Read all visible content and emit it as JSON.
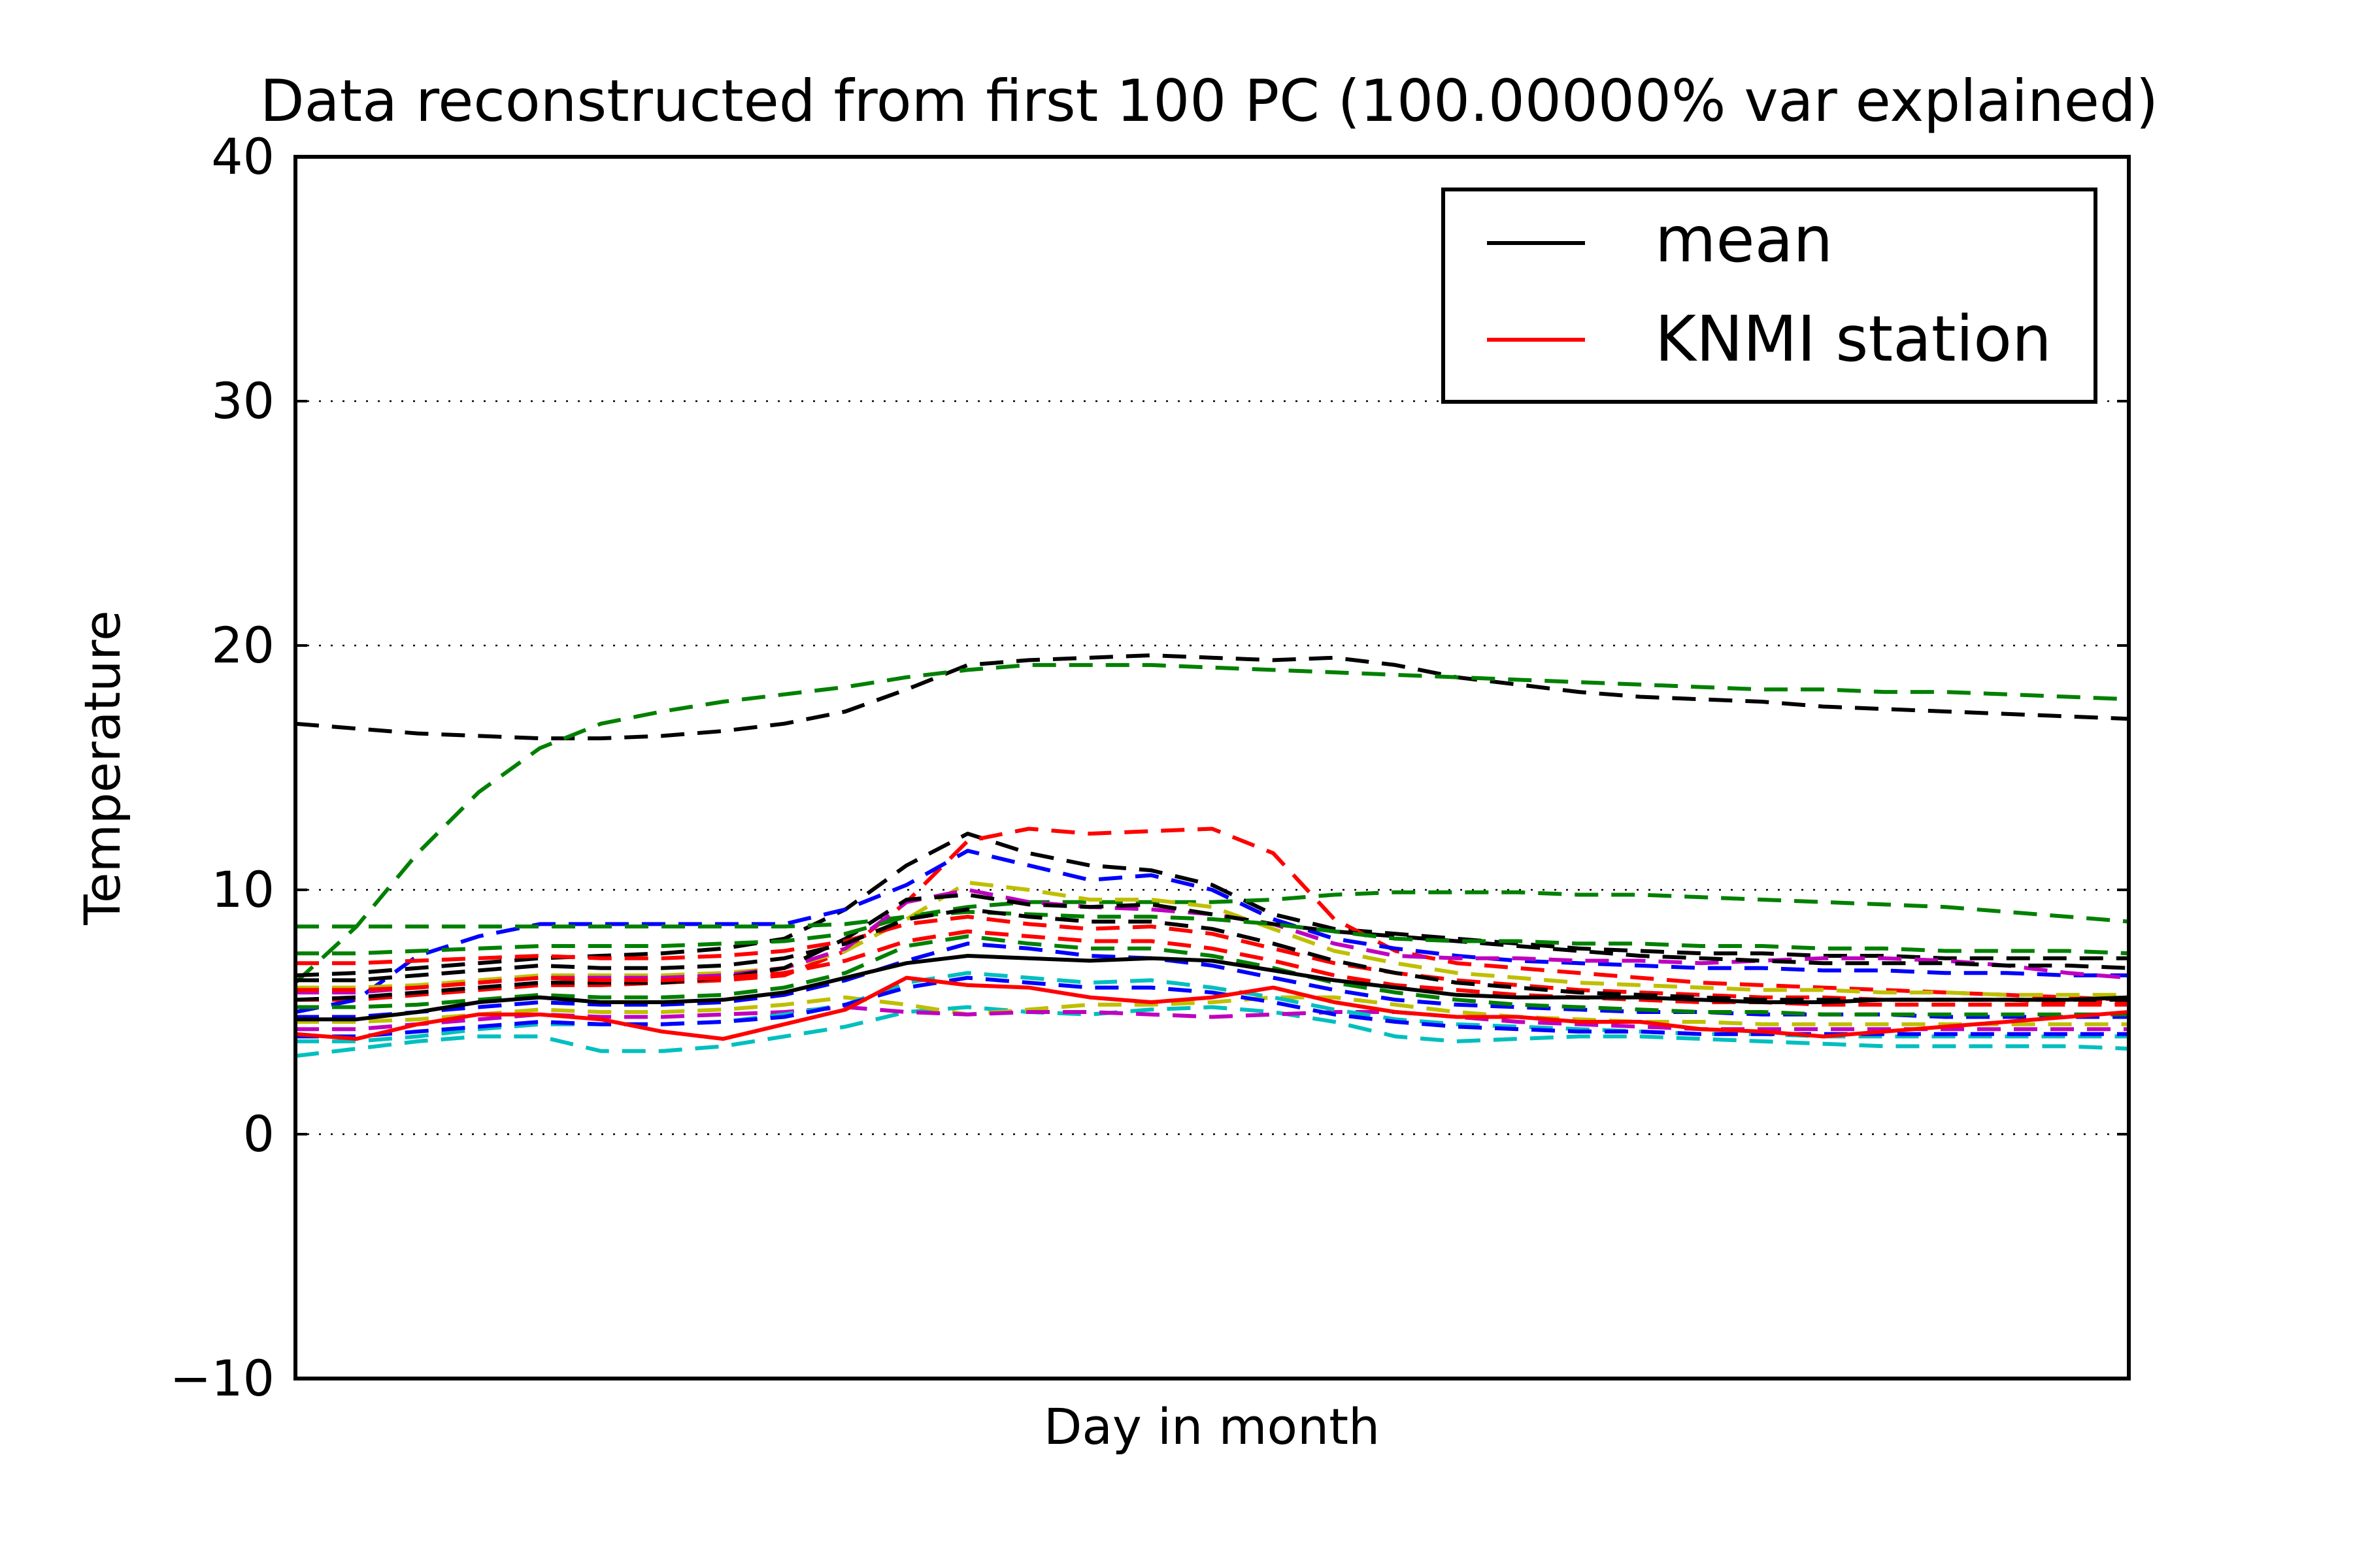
{
  "chart_data": {
    "type": "line",
    "title": "Data reconstructed from first 100 PC (100.00000% var explained)",
    "xlabel": "Day in month",
    "ylabel": "Temperature",
    "ylim": [
      -10,
      40
    ],
    "xlim": [
      1,
      31
    ],
    "yticks": [
      -10,
      0,
      10,
      20,
      30,
      40
    ],
    "ytick_labels": [
      "−10",
      "0",
      "10",
      "20",
      "30",
      "40"
    ],
    "grid": "horizontal dotted",
    "legend_position": "top-right",
    "legend": [
      {
        "label": "mean",
        "color": "#000000",
        "style": "solid"
      },
      {
        "label": "KNMI station",
        "color": "#ff0000",
        "style": "solid"
      }
    ],
    "highlighted_series": [
      {
        "name": "mean",
        "color": "#000000",
        "style": "solid",
        "values": [
          4.7,
          4.7,
          5.0,
          5.4,
          5.6,
          5.4,
          5.4,
          5.5,
          5.8,
          6.4,
          7.0,
          7.3,
          7.2,
          7.1,
          7.2,
          7.1,
          6.7,
          6.3,
          6.0,
          5.7,
          5.6,
          5.6,
          5.6,
          5.5,
          5.4,
          5.4,
          5.5,
          5.5,
          5.5,
          5.5,
          5.6
        ]
      },
      {
        "name": "KNMI station",
        "color": "#ff0000",
        "style": "solid",
        "values": [
          4.1,
          3.9,
          4.5,
          4.9,
          4.9,
          4.7,
          4.2,
          3.9,
          4.5,
          5.1,
          6.4,
          6.1,
          6.0,
          5.6,
          5.4,
          5.6,
          6.0,
          5.4,
          5.0,
          4.8,
          4.8,
          4.6,
          4.6,
          4.3,
          4.2,
          4.0,
          4.2,
          4.4,
          4.6,
          4.8,
          5.0
        ]
      }
    ],
    "member_series": [
      {
        "color": "#000000",
        "style": "dashed",
        "values": [
          16.8,
          16.6,
          16.4,
          16.3,
          16.2,
          16.2,
          16.3,
          16.5,
          16.8,
          17.3,
          18.2,
          19.2,
          19.4,
          19.5,
          19.6,
          19.5,
          19.4,
          19.5,
          19.2,
          18.7,
          18.4,
          18.1,
          17.9,
          17.8,
          17.7,
          17.5,
          17.4,
          17.3,
          17.2,
          17.1,
          17.0
        ]
      },
      {
        "color": "#008000",
        "style": "dashed",
        "values": [
          6.2,
          8.5,
          11.5,
          14.0,
          15.8,
          16.8,
          17.3,
          17.7,
          18.0,
          18.3,
          18.7,
          19.0,
          19.2,
          19.2,
          19.2,
          19.1,
          19.0,
          18.9,
          18.8,
          18.7,
          18.6,
          18.5,
          18.4,
          18.3,
          18.2,
          18.2,
          18.1,
          18.1,
          18.0,
          17.9,
          17.8
        ]
      },
      {
        "color": "#000000",
        "style": "dashed",
        "values": [
          6.5,
          6.6,
          6.8,
          7.0,
          7.2,
          7.3,
          7.4,
          7.6,
          8.0,
          9.2,
          11.0,
          12.3,
          11.5,
          11.0,
          10.8,
          10.2,
          9.0,
          8.4,
          8.2,
          8.0,
          7.8,
          7.6,
          7.5,
          7.4,
          7.4,
          7.3,
          7.3,
          7.2,
          7.2,
          7.2,
          7.2
        ]
      },
      {
        "color": "#ff0000",
        "style": "dashed",
        "values": [
          5.5,
          5.5,
          5.7,
          5.9,
          6.1,
          6.1,
          6.2,
          6.3,
          6.5,
          7.5,
          9.5,
          12.0,
          12.5,
          12.3,
          12.4,
          12.5,
          11.5,
          8.8,
          7.5,
          7.0,
          6.8,
          6.6,
          6.4,
          6.2,
          6.1,
          6.0,
          5.9,
          5.8,
          5.7,
          5.6,
          5.5
        ]
      },
      {
        "color": "#0000ff",
        "style": "dashed",
        "values": [
          5.0,
          5.5,
          7.3,
          8.1,
          8.6,
          8.6,
          8.6,
          8.6,
          8.6,
          9.2,
          10.2,
          11.6,
          11.0,
          10.4,
          10.6,
          10.0,
          8.8,
          8.0,
          7.6,
          7.3,
          7.1,
          7.0,
          6.9,
          6.8,
          6.8,
          6.7,
          6.7,
          6.6,
          6.6,
          6.5,
          6.5
        ]
      },
      {
        "color": "#008000",
        "style": "dashed",
        "values": [
          8.5,
          8.5,
          8.5,
          8.5,
          8.5,
          8.5,
          8.5,
          8.5,
          8.5,
          8.6,
          8.9,
          9.3,
          9.5,
          9.5,
          9.5,
          9.5,
          9.6,
          9.8,
          9.9,
          9.9,
          9.9,
          9.8,
          9.8,
          9.7,
          9.6,
          9.5,
          9.4,
          9.3,
          9.1,
          8.9,
          8.7
        ]
      },
      {
        "color": "#bfbf00",
        "style": "dashed",
        "values": [
          6.0,
          6.0,
          6.1,
          6.3,
          6.5,
          6.5,
          6.5,
          6.6,
          6.8,
          7.5,
          8.8,
          10.3,
          10.0,
          9.6,
          9.6,
          9.3,
          8.4,
          7.5,
          7.0,
          6.6,
          6.4,
          6.2,
          6.1,
          6.0,
          5.9,
          5.9,
          5.8,
          5.8,
          5.7,
          5.7,
          5.7
        ]
      },
      {
        "color": "#bf00bf",
        "style": "dashed",
        "values": [
          5.8,
          5.8,
          6.0,
          6.2,
          6.4,
          6.4,
          6.4,
          6.5,
          6.8,
          7.6,
          9.5,
          10.0,
          9.5,
          9.3,
          9.2,
          9.0,
          8.6,
          7.8,
          7.3,
          7.2,
          7.2,
          7.1,
          7.1,
          7.0,
          7.1,
          7.2,
          7.2,
          7.1,
          6.9,
          6.6,
          6.4
        ]
      },
      {
        "color": "#00bfbf",
        "style": "dashed",
        "values": [
          3.2,
          3.5,
          3.8,
          4.0,
          4.0,
          3.4,
          3.4,
          3.6,
          4.0,
          4.4,
          5.0,
          5.2,
          5.0,
          4.9,
          5.1,
          5.2,
          5.0,
          4.6,
          4.0,
          3.8,
          3.9,
          4.0,
          4.0,
          3.9,
          3.8,
          3.7,
          3.6,
          3.6,
          3.6,
          3.6,
          3.5
        ]
      },
      {
        "color": "#000000",
        "style": "dashed",
        "values": [
          5.5,
          5.6,
          5.8,
          6.0,
          6.2,
          6.2,
          6.2,
          6.4,
          6.8,
          8.0,
          9.6,
          9.8,
          9.4,
          9.3,
          9.4,
          9.0,
          8.6,
          8.3,
          8.1,
          7.9,
          7.7,
          7.5,
          7.3,
          7.2,
          7.1,
          7.0,
          7.0,
          7.0,
          6.9,
          6.9,
          6.8
        ]
      },
      {
        "color": "#008000",
        "style": "dashed",
        "values": [
          7.4,
          7.4,
          7.5,
          7.6,
          7.7,
          7.7,
          7.7,
          7.8,
          7.9,
          8.2,
          8.9,
          9.1,
          9.0,
          8.9,
          8.9,
          8.8,
          8.6,
          8.3,
          8.0,
          7.9,
          7.9,
          7.8,
          7.8,
          7.7,
          7.7,
          7.6,
          7.6,
          7.5,
          7.5,
          7.5,
          7.4
        ]
      },
      {
        "color": "#ff0000",
        "style": "dashed",
        "values": [
          7.0,
          7.0,
          7.1,
          7.2,
          7.3,
          7.2,
          7.2,
          7.3,
          7.5,
          7.9,
          8.6,
          8.9,
          8.6,
          8.4,
          8.5,
          8.2,
          7.6,
          7.0,
          6.6,
          6.3,
          6.1,
          5.9,
          5.8,
          5.7,
          5.6,
          5.6,
          5.5,
          5.5,
          5.5,
          5.4,
          5.4
        ]
      },
      {
        "color": "#0000ff",
        "style": "dashed",
        "values": [
          4.8,
          4.8,
          5.0,
          5.2,
          5.4,
          5.3,
          5.3,
          5.4,
          5.7,
          6.3,
          7.1,
          7.8,
          7.6,
          7.3,
          7.2,
          6.9,
          6.4,
          5.9,
          5.5,
          5.3,
          5.2,
          5.1,
          5.0,
          5.0,
          4.9,
          4.9,
          4.9,
          4.8,
          4.8,
          4.8,
          4.8
        ]
      },
      {
        "color": "#bfbf00",
        "style": "dashed",
        "values": [
          4.6,
          4.6,
          4.7,
          4.9,
          5.1,
          5.0,
          5.0,
          5.1,
          5.3,
          5.6,
          5.3,
          4.9,
          5.1,
          5.3,
          5.3,
          5.4,
          5.6,
          5.6,
          5.3,
          5.0,
          4.8,
          4.7,
          4.6,
          4.6,
          4.5,
          4.5,
          4.5,
          4.5,
          4.5,
          4.5,
          4.5
        ]
      },
      {
        "color": "#bf00bf",
        "style": "dashed",
        "values": [
          4.3,
          4.3,
          4.5,
          4.7,
          4.9,
          4.8,
          4.8,
          4.9,
          5.0,
          5.2,
          5.0,
          4.9,
          5.0,
          5.0,
          4.9,
          4.8,
          4.9,
          5.0,
          5.0,
          4.8,
          4.6,
          4.5,
          4.4,
          4.3,
          4.3,
          4.3,
          4.3,
          4.3,
          4.3,
          4.3,
          4.3
        ]
      },
      {
        "color": "#00bfbf",
        "style": "dashed",
        "values": [
          3.8,
          3.8,
          4.0,
          4.3,
          4.5,
          4.5,
          4.5,
          4.6,
          4.9,
          5.3,
          6.2,
          6.6,
          6.4,
          6.2,
          6.3,
          6.0,
          5.6,
          5.1,
          4.7,
          4.5,
          4.4,
          4.3,
          4.2,
          4.1,
          4.1,
          4.0,
          4.0,
          4.0,
          4.0,
          4.0,
          4.0
        ]
      },
      {
        "color": "#000000",
        "style": "dashed",
        "values": [
          6.3,
          6.3,
          6.5,
          6.7,
          6.9,
          6.8,
          6.8,
          6.9,
          7.2,
          7.8,
          8.8,
          9.2,
          8.9,
          8.7,
          8.7,
          8.4,
          7.8,
          7.1,
          6.6,
          6.2,
          6.0,
          5.8,
          5.7,
          5.6,
          5.5,
          5.5,
          5.5,
          5.5,
          5.5,
          5.5,
          5.5
        ]
      },
      {
        "color": "#008000",
        "style": "dashed",
        "values": [
          5.2,
          5.2,
          5.3,
          5.5,
          5.7,
          5.6,
          5.6,
          5.7,
          6.0,
          6.6,
          7.7,
          8.1,
          7.8,
          7.6,
          7.6,
          7.3,
          6.8,
          6.2,
          5.8,
          5.5,
          5.3,
          5.2,
          5.1,
          5.0,
          5.0,
          4.9,
          4.9,
          4.9,
          4.9,
          4.9,
          4.9
        ]
      },
      {
        "color": "#ff0000",
        "style": "dashed",
        "values": [
          5.9,
          5.9,
          6.0,
          6.2,
          6.4,
          6.3,
          6.3,
          6.4,
          6.6,
          7.1,
          7.9,
          8.3,
          8.1,
          7.9,
          7.9,
          7.6,
          7.1,
          6.5,
          6.1,
          5.9,
          5.7,
          5.6,
          5.5,
          5.4,
          5.4,
          5.3,
          5.3,
          5.3,
          5.3,
          5.3,
          5.3
        ]
      },
      {
        "color": "#0000ff",
        "style": "dashed",
        "values": [
          4.0,
          4.0,
          4.2,
          4.4,
          4.6,
          4.5,
          4.5,
          4.6,
          4.8,
          5.3,
          6.0,
          6.4,
          6.2,
          6.0,
          6.0,
          5.8,
          5.4,
          4.9,
          4.6,
          4.4,
          4.3,
          4.2,
          4.2,
          4.1,
          4.1,
          4.1,
          4.1,
          4.1,
          4.1,
          4.1,
          4.1
        ]
      }
    ]
  }
}
